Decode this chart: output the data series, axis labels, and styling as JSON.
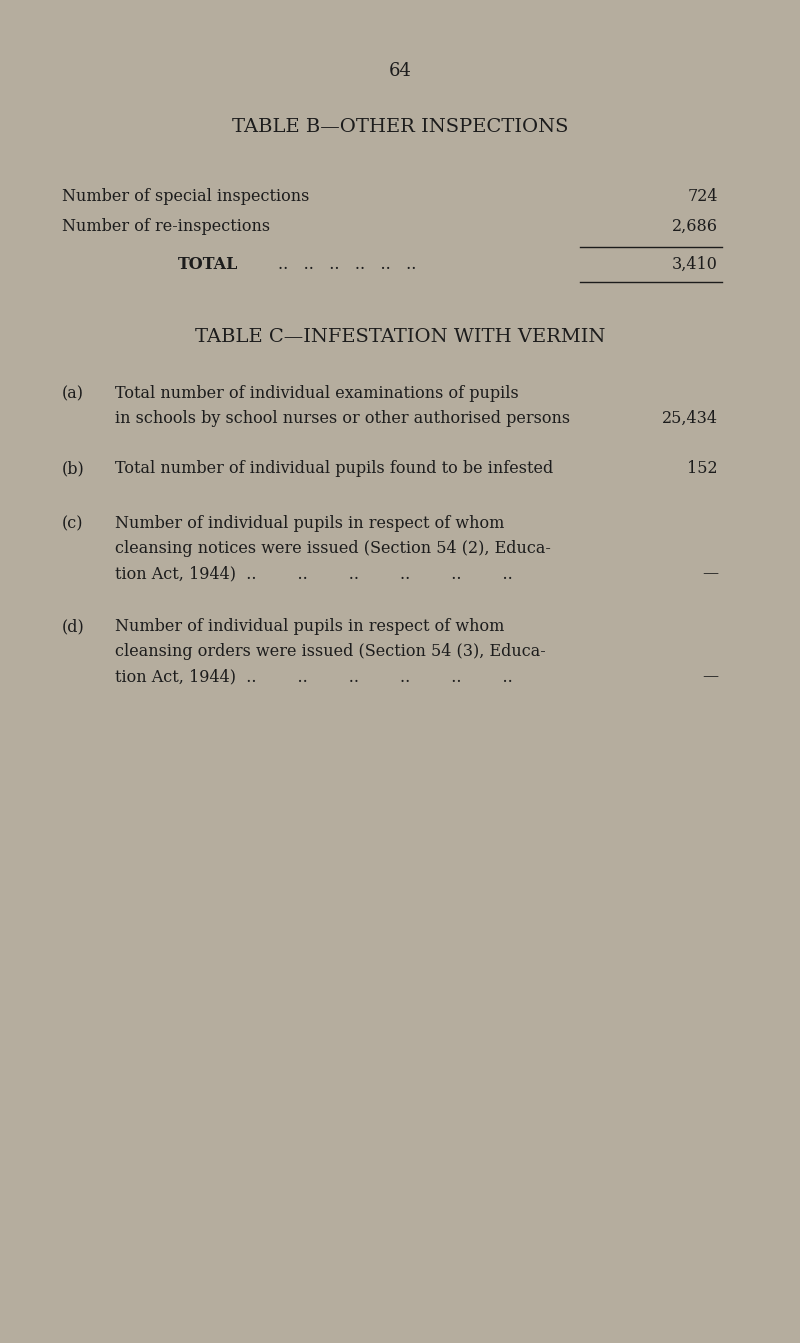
{
  "background_color": "#b5ad9e",
  "page_number": "64",
  "table_b_title": "TABLE B—OTHER INSPECTIONS",
  "table_b_row1_label": "Number of special inspections",
  "table_b_row1_value": "724",
  "table_b_row2_label": "Number of re-inspections",
  "table_b_row2_value": "2,686",
  "table_b_total_label": "TOTAL",
  "table_b_total_dots": "..   ..   ..   ..   ..   ..",
  "table_b_total_value": "3,410",
  "table_c_title": "TABLE C—INFESTATION WITH VERMIN",
  "item_a_letter": "(a)",
  "item_a_line1": "Total number of individual examinations of pupils",
  "item_a_line2": "in schools by school nurses or other authorised persons",
  "item_a_value": "25,434",
  "item_b_letter": "(b)",
  "item_b_line1": "Total number of individual pupils found to be infested",
  "item_b_value": "152",
  "item_c_letter": "(c)",
  "item_c_line1": "Number of individual pupils in respect of whom",
  "item_c_line2": "cleansing notices were issued (Section 54 (2), Educa-",
  "item_c_line3": "tion Act, 1944)  ..        ..        ..        ..        ..        ..",
  "item_c_value": "—",
  "item_d_letter": "(d)",
  "item_d_line1": "Number of individual pupils in respect of whom",
  "item_d_line2": "cleansing orders were issued (Section 54 (3), Educa-",
  "item_d_line3": "tion Act, 1944)  ..        ..        ..        ..        ..        ..",
  "item_d_value": "—",
  "text_color": "#1c1c1c",
  "line_color": "#1c1c1c",
  "title_fontsize": 14,
  "body_fontsize": 11.5,
  "page_num_fontsize": 13
}
